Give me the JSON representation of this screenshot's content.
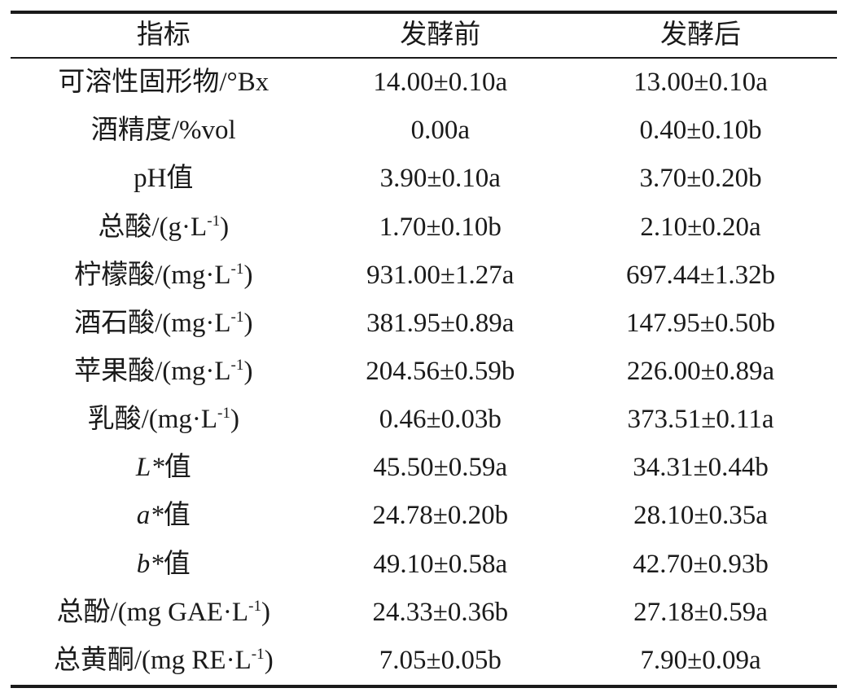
{
  "table": {
    "columns": [
      {
        "label": "指标"
      },
      {
        "label": "发酵前"
      },
      {
        "label": "发酵后"
      }
    ],
    "rows": [
      {
        "indicator": [
          {
            "t": "可溶性固形物/°Bx"
          }
        ],
        "before": "14.00±0.10a",
        "after": "13.00±0.10a"
      },
      {
        "indicator": [
          {
            "t": "酒精度/%vol"
          }
        ],
        "before": "0.00a",
        "after": "0.40±0.10b"
      },
      {
        "indicator": [
          {
            "t": "pH值"
          }
        ],
        "before": "3.90±0.10a",
        "after": "3.70±0.20b"
      },
      {
        "indicator": [
          {
            "t": "总酸/(g·L"
          },
          {
            "t": "-1",
            "sup": true
          },
          {
            "t": ")"
          }
        ],
        "before": "1.70±0.10b",
        "after": "2.10±0.20a"
      },
      {
        "indicator": [
          {
            "t": "柠檬酸/(mg·L"
          },
          {
            "t": "-1",
            "sup": true
          },
          {
            "t": ")"
          }
        ],
        "before": "931.00±1.27a",
        "after": "697.44±1.32b"
      },
      {
        "indicator": [
          {
            "t": "酒石酸/(mg·L"
          },
          {
            "t": "-1",
            "sup": true
          },
          {
            "t": ")"
          }
        ],
        "before": "381.95±0.89a",
        "after": "147.95±0.50b"
      },
      {
        "indicator": [
          {
            "t": "苹果酸/(mg·L"
          },
          {
            "t": "-1",
            "sup": true
          },
          {
            "t": ")"
          }
        ],
        "before": "204.56±0.59b",
        "after": "226.00±0.89a"
      },
      {
        "indicator": [
          {
            "t": "乳酸/(mg·L"
          },
          {
            "t": "-1",
            "sup": true
          },
          {
            "t": ")"
          }
        ],
        "before": "0.46±0.03b",
        "after": "373.51±0.11a"
      },
      {
        "indicator": [
          {
            "t": "L*",
            "i": true
          },
          {
            "t": "值"
          }
        ],
        "before": "45.50±0.59a",
        "after": "34.31±0.44b"
      },
      {
        "indicator": [
          {
            "t": "a*",
            "i": true
          },
          {
            "t": "值"
          }
        ],
        "before": "24.78±0.20b",
        "after": "28.10±0.35a"
      },
      {
        "indicator": [
          {
            "t": "b*",
            "i": true
          },
          {
            "t": "值"
          }
        ],
        "before": "49.10±0.58a",
        "after": "42.70±0.93b"
      },
      {
        "indicator": [
          {
            "t": "总酚/(mg GAE·L"
          },
          {
            "t": "-1",
            "sup": true
          },
          {
            "t": ")"
          }
        ],
        "before": "24.33±0.36b",
        "after": "27.18±0.59a"
      },
      {
        "indicator": [
          {
            "t": "总黄酮/(mg RE·L"
          },
          {
            "t": "-1",
            "sup": true
          },
          {
            "t": ")"
          }
        ],
        "before": "7.05±0.05b",
        "after": "7.90±0.09a"
      }
    ]
  },
  "colors": {
    "text": "#1a1a1a",
    "rule": "#1a1a1a",
    "background": "#ffffff"
  }
}
